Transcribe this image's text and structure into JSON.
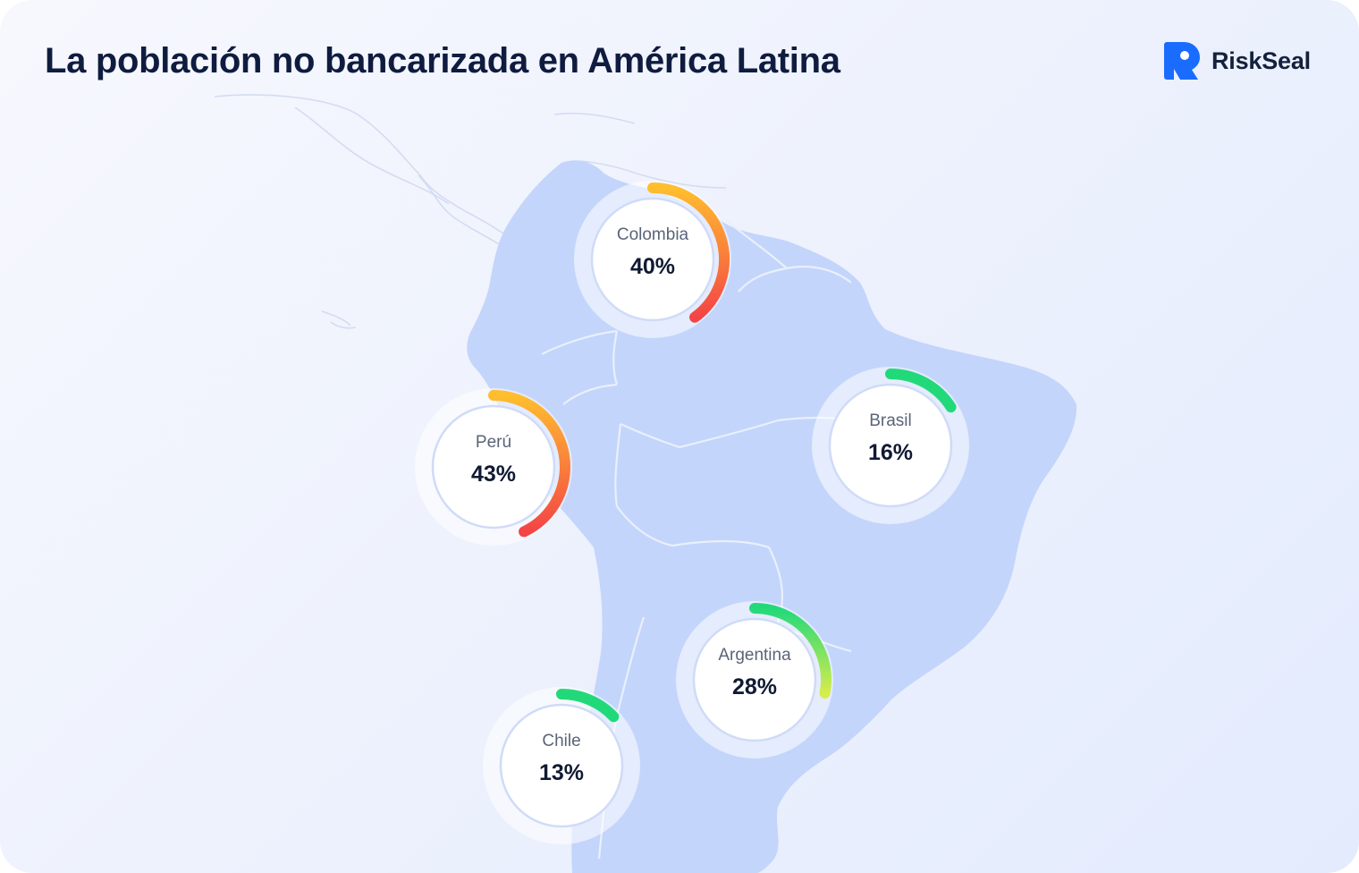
{
  "title": "La población no bancarizada en América Latina",
  "brand": {
    "name": "RiskSeal",
    "logo_icon": "riskseal-logo-icon",
    "color": "#1a6cff"
  },
  "gauge_colors": {
    "low": "#22d97a",
    "mid": "#d6ec4c",
    "high": "#ffbe2e",
    "max": "#f44446"
  },
  "countries": [
    {
      "id": "colombia",
      "label": "Colombia",
      "value_text": "40%",
      "value": 40
    },
    {
      "id": "peru",
      "label": "Perú",
      "value_text": "43%",
      "value": 43
    },
    {
      "id": "brasil",
      "label": "Brasil",
      "value_text": "16%",
      "value": 16
    },
    {
      "id": "argentina",
      "label": "Argentina",
      "value_text": "28%",
      "value": 28
    },
    {
      "id": "chile",
      "label": "Chile",
      "value_text": "13%",
      "value": 13
    }
  ]
}
